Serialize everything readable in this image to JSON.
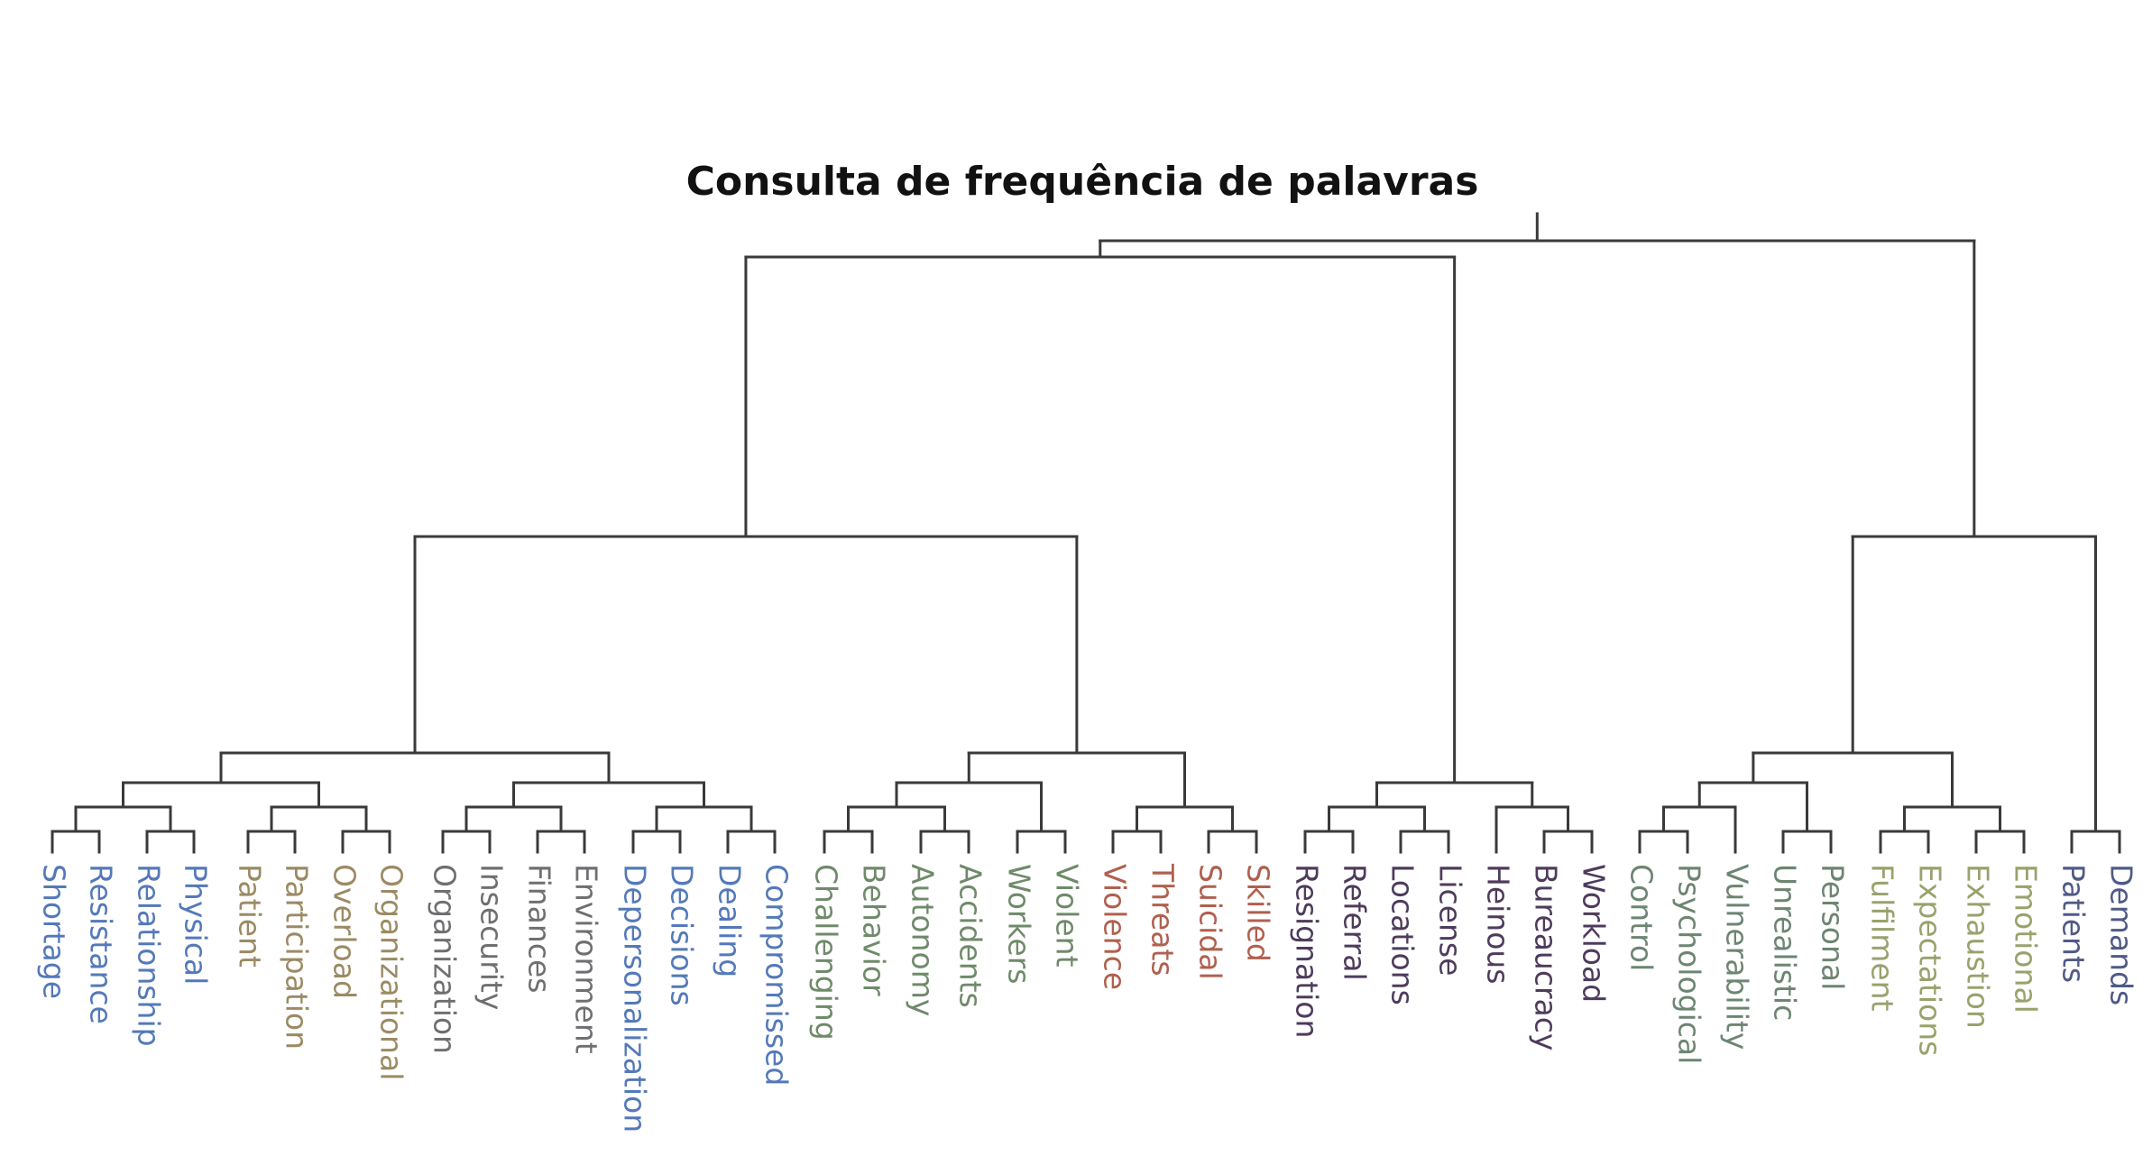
{
  "title": "Consulta de frequência de palavras",
  "palette": {
    "blue": "#5479b9",
    "tan": "#9b8a63",
    "gray": "#6f6f72",
    "green": "#6f8a6a",
    "red": "#b0604e",
    "purple": "#4e3b5c",
    "sage": "#6d8572",
    "olive": "#98a26c",
    "navy": "#4f5a86"
  },
  "tree": [
    [
      [
        [
          [
            [
              [
                "Shortage",
                "Resistance"
              ],
              [
                "Relationship",
                "Physical"
              ]
            ],
            [
              [
                "Patient",
                "Participation"
              ],
              [
                "Overload",
                "Organizational"
              ]
            ]
          ],
          [
            [
              [
                "Organization",
                "Insecurity"
              ],
              [
                "Finances",
                "Environment"
              ]
            ],
            [
              [
                "Depersonalization",
                "Decisions"
              ],
              [
                "Dealing",
                "Compromissed"
              ]
            ]
          ]
        ],
        [
          [
            [
              [
                "Challenging",
                "Behavior"
              ],
              [
                "Autonomy",
                "Accidents"
              ]
            ],
            [
              "Workers",
              "Violent"
            ]
          ],
          [
            [
              "Violence",
              "Threats"
            ],
            [
              "Suicidal",
              "Skilled"
            ]
          ]
        ]
      ],
      [
        [
          [
            "Resignation",
            "Referral"
          ],
          [
            "Locations",
            "License"
          ]
        ],
        [
          "Heinous",
          [
            "Bureaucracy",
            "Workload"
          ]
        ]
      ]
    ],
    [
      [
        [
          [
            [
              "Control",
              "Psychological"
            ],
            "Vulnerability"
          ],
          [
            "Unrealistic",
            "Personal"
          ]
        ],
        [
          [
            "Fulfilment",
            "Expectations"
          ],
          [
            "Exhaustion",
            "Emotional"
          ]
        ]
      ],
      [
        "Patients",
        "Demands"
      ]
    ]
  ],
  "leaf_colors": [
    "blue",
    "blue",
    "blue",
    "blue",
    "tan",
    "tan",
    "tan",
    "tan",
    "gray",
    "gray",
    "gray",
    "gray",
    "blue",
    "blue",
    "blue",
    "blue",
    "green",
    "green",
    "green",
    "green",
    "green",
    "green",
    "red",
    "red",
    "red",
    "red",
    "purple",
    "purple",
    "purple",
    "purple",
    "purple",
    "purple",
    "purple",
    "sage",
    "sage",
    "sage",
    "sage",
    "sage",
    "olive",
    "olive",
    "olive",
    "olive",
    "navy",
    "navy"
  ]
}
